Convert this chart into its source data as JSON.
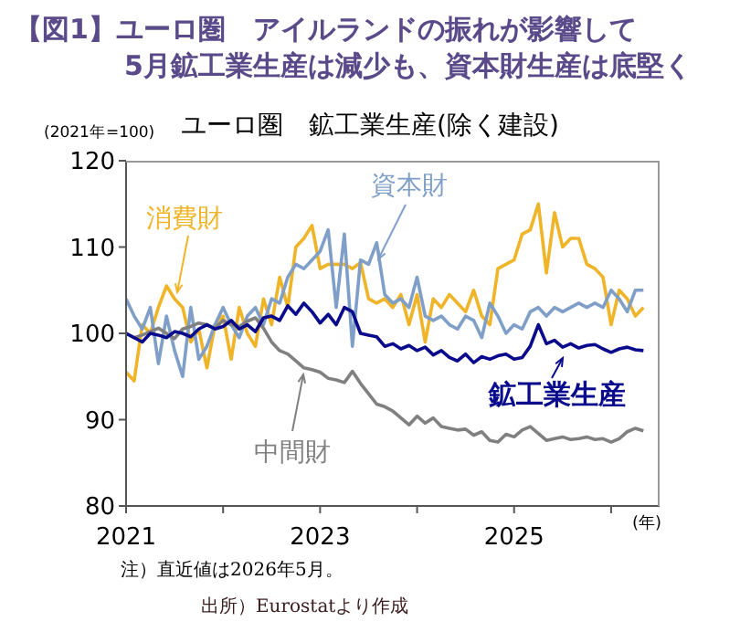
{
  "chart_data": {
    "type": "line",
    "title": "【図1】ユーロ圏　アイルランドの振れが影響して\n　　　　5月鉱工業生産は減少も、資本財生産は底堅く",
    "subtitle": "ユーロ圏　鉱工業生産(除く建設)",
    "ylabel": "(2021年=100)",
    "xlabel": "(年)",
    "annotations": [
      "注）直近値は2026年5月。",
      "出所）Eurostatより作成"
    ],
    "x": [
      "2021-01",
      "2021-02",
      "2021-03",
      "2021-04",
      "2021-05",
      "2021-06",
      "2021-07",
      "2021-08",
      "2021-09",
      "2021-10",
      "2021-11",
      "2021-12",
      "2022-01",
      "2022-02",
      "2022-03",
      "2022-04",
      "2022-05",
      "2022-06",
      "2022-07",
      "2022-08",
      "2022-09",
      "2022-10",
      "2022-11",
      "2022-12",
      "2023-01",
      "2023-02",
      "2023-03",
      "2023-04",
      "2023-05",
      "2023-06",
      "2023-07",
      "2023-08",
      "2023-09",
      "2023-10",
      "2023-11",
      "2023-12",
      "2024-01",
      "2024-02",
      "2024-03",
      "2024-04",
      "2024-05",
      "2024-06",
      "2024-07",
      "2024-08",
      "2024-09",
      "2024-10",
      "2024-11",
      "2024-12",
      "2025-01",
      "2025-02",
      "2025-03",
      "2025-04",
      "2025-05",
      "2025-06",
      "2025-07",
      "2025-08",
      "2025-09",
      "2025-10",
      "2025-11",
      "2025-12",
      "2026-01",
      "2026-02",
      "2026-03",
      "2026-04",
      "2026-05"
    ],
    "series": [
      {
        "name": "消費財",
        "color": "#f0b428",
        "values": [
          95.5,
          94.5,
          101,
          100,
          103,
          105.5,
          104,
          103,
          99,
          100.5,
          96,
          101,
          102,
          97,
          103,
          100,
          98.5,
          104,
          101,
          106.5,
          103,
          110,
          111,
          112.5,
          107.5,
          108,
          108,
          108,
          107.5,
          108.2,
          104,
          103.5,
          104,
          103,
          104.5,
          101,
          104.5,
          99,
          104,
          103,
          104.5,
          103.5,
          102.5,
          105,
          102,
          101,
          107.5,
          108,
          108.5,
          111.5,
          112,
          115,
          107,
          114,
          110,
          111,
          111,
          108,
          107.5,
          106.5,
          101,
          105,
          104,
          102,
          103
        ]
      },
      {
        "name": "資本財",
        "color": "#7f9fc8",
        "values": [
          104,
          102,
          100.5,
          103,
          96.5,
          102,
          98,
          95,
          103,
          97,
          98.5,
          101,
          103,
          101,
          99.5,
          102,
          103,
          101,
          104,
          103.5,
          106.5,
          108,
          107.5,
          108.5,
          109.5,
          112,
          103,
          111.5,
          98.5,
          108.5,
          108,
          110.5,
          104.5,
          103.5,
          104,
          103,
          106.5,
          102,
          101.5,
          102,
          101,
          100.5,
          102,
          101.5,
          99.5,
          103.5,
          102,
          100,
          101,
          100.5,
          102.5,
          103,
          102,
          103,
          102.5,
          103,
          103.5,
          103,
          103.5,
          103,
          105,
          104,
          102.5,
          105,
          105
        ]
      },
      {
        "name": "中間財",
        "color": "#808080",
        "values": [
          100,
          99.5,
          99.8,
          100.2,
          100.6,
          100,
          99.4,
          100.5,
          100.8,
          101.2,
          101,
          100.6,
          101.5,
          101,
          100.8,
          101.4,
          101.8,
          100.6,
          99,
          98,
          97.6,
          96.8,
          96,
          95.8,
          95.5,
          94.8,
          94.6,
          94.3,
          95.6,
          94.2,
          93,
          91.8,
          91.5,
          91,
          90.2,
          89.4,
          90.4,
          89.6,
          90.2,
          89.2,
          89,
          88.8,
          88.9,
          88.2,
          88.6,
          87.6,
          87.4,
          88.3,
          88,
          88.8,
          89.2,
          88.4,
          87.6,
          87.8,
          88,
          87.7,
          87.8,
          88,
          87.7,
          87.8,
          87.4,
          87.8,
          88.6,
          89,
          88.7
        ]
      },
      {
        "name": "鉱工業生産",
        "color": "#0a0a8c",
        "values": [
          100,
          99.5,
          99,
          100,
          99.8,
          99.5,
          100.2,
          100,
          99.6,
          100.5,
          101,
          100.5,
          100.8,
          101.5,
          100.5,
          101,
          100.2,
          101.8,
          102,
          101.5,
          103.2,
          102.2,
          103.5,
          102.5,
          101.2,
          102.2,
          101,
          103,
          102.5,
          100,
          99.8,
          99.6,
          98.5,
          98.8,
          98.2,
          98.6,
          98,
          98.4,
          97.5,
          98,
          97.2,
          96.8,
          97.6,
          96.6,
          97.3,
          97,
          97.4,
          97.6,
          97,
          97.2,
          98.5,
          101,
          98.8,
          99.2,
          98.4,
          98.8,
          98.3,
          98.6,
          98.7,
          98.2,
          97.8,
          98.2,
          98.4,
          98.1,
          98
        ]
      }
    ],
    "xlim": [
      "2021-01",
      "2026-07"
    ],
    "xticks": [
      "2021",
      {
        "value": "2022",
        "label": null
      },
      "2023",
      {
        "value": "2024",
        "label": null
      },
      "2025",
      {
        "value": "2026",
        "label": null
      }
    ],
    "ylim": [
      80,
      120
    ],
    "yticks": [
      80,
      90,
      100,
      110,
      120
    ],
    "grid": false,
    "legend": "bottom right",
    "marker": "none",
    "line_style": "solid"
  }
}
